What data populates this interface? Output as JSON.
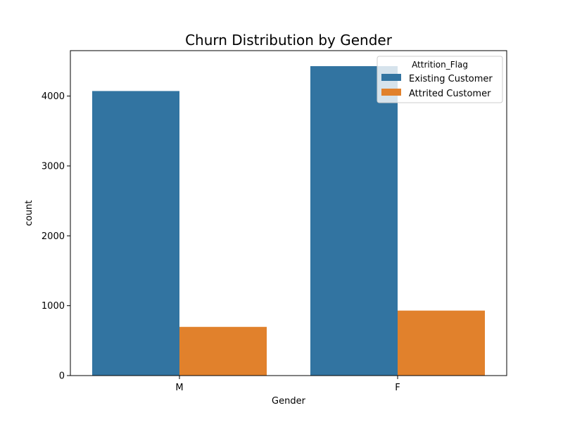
{
  "chart_data": {
    "type": "bar",
    "title": "Churn Distribution by Gender",
    "xlabel": "Gender",
    "ylabel": "count",
    "categories": [
      "M",
      "F"
    ],
    "ylim": [
      0,
      4650
    ],
    "yticks": [
      0,
      1000,
      2000,
      3000,
      4000
    ],
    "grid": false,
    "legend": {
      "title": "Attrition_Flag",
      "placement": "top-right"
    },
    "series": [
      {
        "name": "Existing Customer",
        "color": "#3274a1",
        "values": [
          4072,
          4428
        ]
      },
      {
        "name": "Attrited Customer",
        "color": "#e1812c",
        "values": [
          697,
          930
        ]
      }
    ]
  }
}
